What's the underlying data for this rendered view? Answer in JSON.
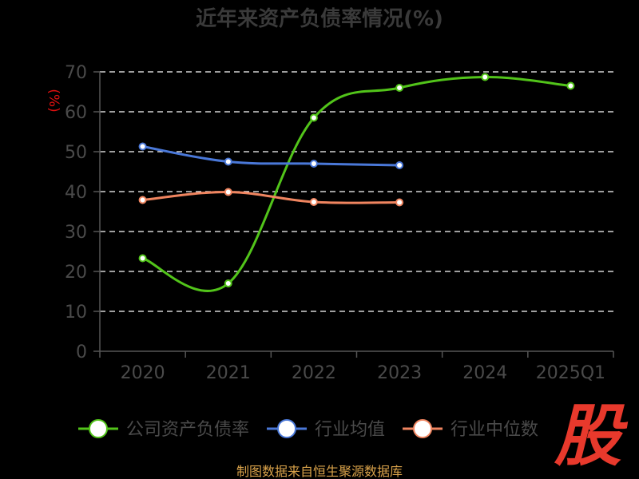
{
  "chart_data": {
    "type": "line",
    "title": "近年来资产负债率情况(%)",
    "ylabel": "(%)",
    "xlabel": "",
    "categories": [
      "2020",
      "2021",
      "2022",
      "2023",
      "2024",
      "2025Q1"
    ],
    "ylim": [
      0,
      70
    ],
    "yticks": [
      0,
      10,
      20,
      30,
      40,
      50,
      60,
      70
    ],
    "grid": true,
    "legend_position": "bottom",
    "series": [
      {
        "name": "公司资产负债率",
        "color": "#52c41a",
        "values": [
          23.3,
          17.0,
          58.5,
          66.0,
          68.7,
          66.5
        ]
      },
      {
        "name": "行业均值",
        "color": "#4a78d8",
        "values": [
          51.3,
          47.5,
          47.0,
          46.6,
          null,
          null
        ]
      },
      {
        "name": "行业中位数",
        "color": "#f08560",
        "values": [
          37.9,
          39.9,
          37.4,
          37.3,
          null,
          null
        ]
      }
    ]
  },
  "watermark": "股",
  "source_text": "制图数据来自恒生聚源数据库"
}
